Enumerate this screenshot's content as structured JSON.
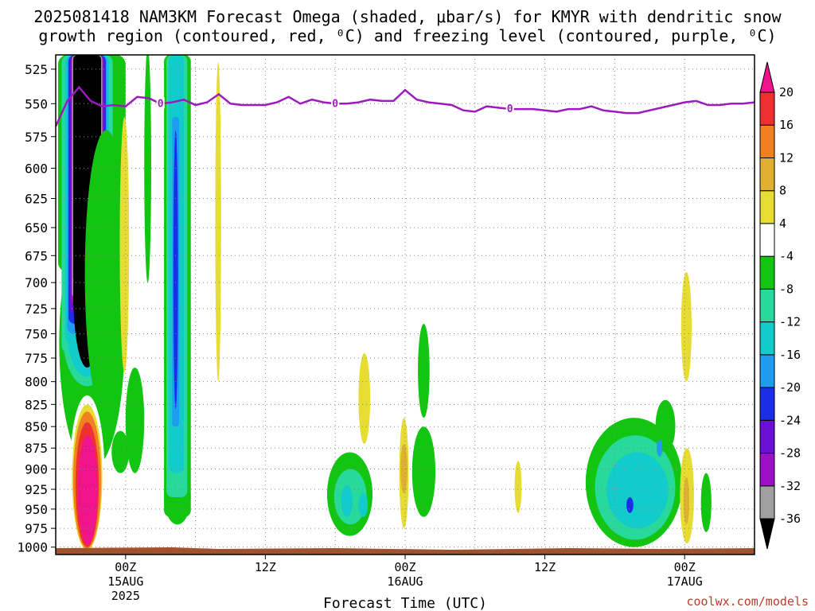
{
  "title": {
    "line1": "2025081418 NAM3KM Forecast Omega (shaded, μbar/s) for KMYR with dendritic snow",
    "line2": "growth region (contoured, red, ⁰C) and freezing level (contoured, purple, ⁰C)"
  },
  "credit": "coolwx.com/models",
  "chart_data": {
    "type": "heatmap",
    "title": "2025081418 NAM3KM Forecast Omega (shaded, μbar/s) for KMYR with dendritic snow growth region (contoured, red, ⁰C) and freezing level (contoured, purple, ⁰C)",
    "xlabel": "Forecast Time (UTC)",
    "ylabel": "",
    "y_scale": "log-pressure (inverted)",
    "ylim": [
      1010,
      515
    ],
    "xlim_hours_from_init": [
      0,
      60
    ],
    "y_ticks": [
      525,
      550,
      575,
      600,
      625,
      650,
      675,
      700,
      725,
      750,
      775,
      800,
      825,
      850,
      875,
      900,
      925,
      950,
      975,
      1000
    ],
    "x_ticks": [
      {
        "hour": 6,
        "label": "00Z",
        "sub1": "15AUG",
        "sub2": "2025"
      },
      {
        "hour": 18,
        "label": "12Z",
        "sub1": "",
        "sub2": ""
      },
      {
        "hour": 30,
        "label": "00Z",
        "sub1": "16AUG",
        "sub2": ""
      },
      {
        "hour": 42,
        "label": "12Z",
        "sub1": "",
        "sub2": ""
      },
      {
        "hour": 54,
        "label": "00Z",
        "sub1": "17AUG",
        "sub2": ""
      }
    ],
    "colorbar": {
      "levels": [
        -36,
        -32,
        -28,
        -24,
        -20,
        -16,
        -12,
        -8,
        -4,
        4,
        8,
        12,
        16,
        20
      ],
      "level_labels": [
        "-36",
        "-32",
        "-28",
        "-24",
        "-20",
        "-16",
        "-12",
        "-8",
        "-4",
        "4",
        "8",
        "12",
        "16",
        "20"
      ],
      "colors": [
        "#000000",
        "#a0a0a0",
        "#9b0fc5",
        "#6a0fd4",
        "#1a2ee8",
        "#1e9cf0",
        "#12cccc",
        "#27d99a",
        "#11c511",
        "#ffffff",
        "#e6dc32",
        "#e0b030",
        "#f08020",
        "#f03030",
        "#f0148c"
      ]
    },
    "freezing_level": {
      "label": "0",
      "hours": [
        0,
        1,
        2,
        3,
        4,
        5,
        6,
        7,
        8,
        9,
        10,
        11,
        12,
        13,
        14,
        15,
        16,
        17,
        18,
        19,
        20,
        21,
        22,
        23,
        24,
        25,
        26,
        27,
        28,
        29,
        30,
        31,
        32,
        33,
        34,
        35,
        36,
        37,
        38,
        39,
        40,
        41,
        42,
        43,
        44,
        45,
        46,
        47,
        48,
        49,
        50,
        51,
        52,
        53,
        54,
        55,
        56,
        57,
        58,
        59,
        60
      ],
      "pressure_hpa": [
        567,
        548,
        538,
        548,
        552,
        551,
        552,
        545,
        546,
        550,
        549,
        547,
        551,
        549,
        543,
        550,
        551,
        551,
        551,
        549,
        545,
        550,
        547,
        549,
        550,
        550,
        549,
        547,
        548,
        548,
        540,
        547,
        549,
        550,
        551,
        555,
        556,
        552,
        553,
        554,
        554,
        554,
        555,
        556,
        554,
        554,
        552,
        555,
        556,
        557,
        557,
        555,
        553,
        551,
        549,
        548,
        551,
        551,
        550,
        550,
        549
      ]
    },
    "omega_features": [
      {
        "name": "column core",
        "hours": [
          1.5,
          4.0
        ],
        "pressure_hpa": [
          515,
          785
        ],
        "min_value": -36
      },
      {
        "name": "lower positive maximum",
        "hours": [
          1.5,
          3.8
        ],
        "pressure_hpa": [
          815,
          1005
        ],
        "max_value": 24
      },
      {
        "name": "column near 04Z",
        "hours": [
          9.5,
          11.5
        ],
        "pressure_hpa": [
          515,
          965
        ],
        "min_value": -24
      },
      {
        "name": "late 16AUG cluster",
        "hours": [
          45.5,
          53.5
        ],
        "pressure_hpa": [
          820,
          995
        ],
        "min_value": -20
      }
    ]
  }
}
